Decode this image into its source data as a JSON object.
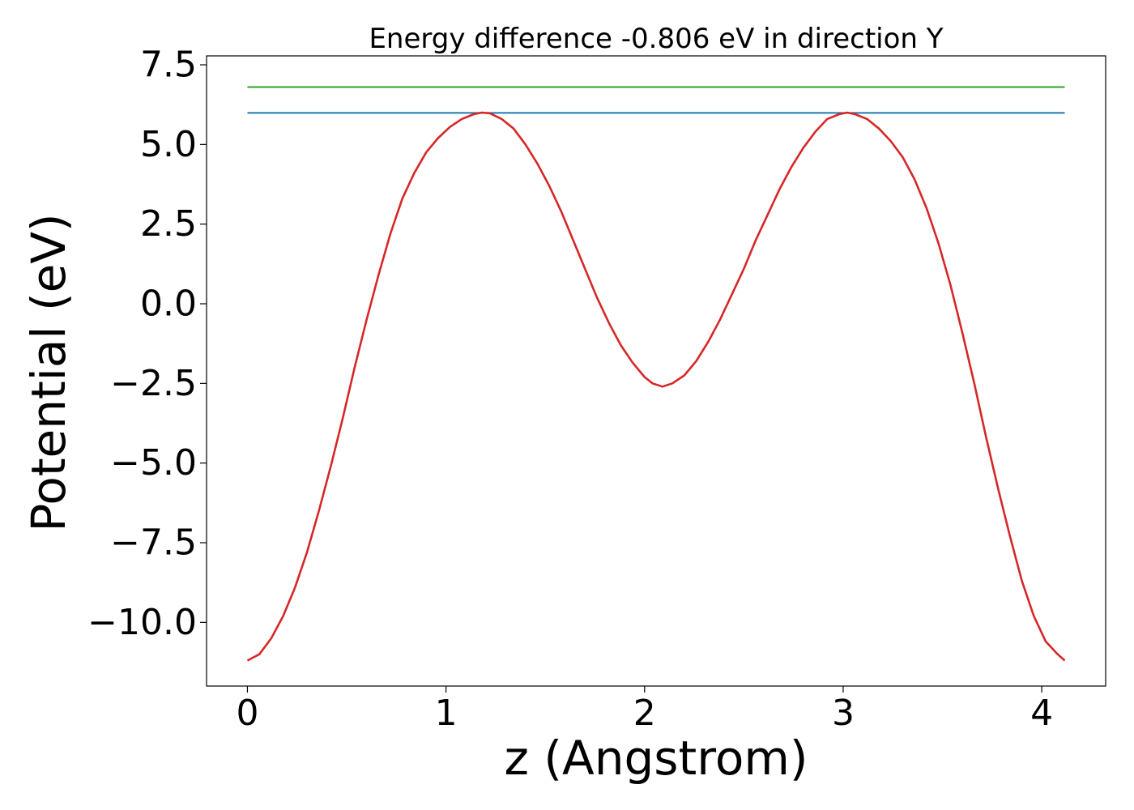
{
  "chart_data": {
    "type": "line",
    "title": "Energy difference -0.806 eV in direction Y",
    "xlabel": "z (Angstrom)",
    "ylabel": "Potential (eV)",
    "xlim": [
      -0.2058,
      4.3218
    ],
    "ylim": [
      -12.0,
      7.78
    ],
    "xticks": [
      0,
      1,
      2,
      3,
      4
    ],
    "xtick_labels": [
      "0",
      "1",
      "2",
      "3",
      "4"
    ],
    "yticks": [
      -10.0,
      -7.5,
      -5.0,
      -2.5,
      0.0,
      2.5,
      5.0,
      7.5
    ],
    "ytick_labels": [
      "−10.0",
      "−7.5",
      "−5.0",
      "−2.5",
      "0.0",
      "2.5",
      "5.0",
      "7.5"
    ],
    "grid": false,
    "series": [
      {
        "color": "#2ca02c",
        "style": "hline",
        "y": 6.8,
        "x": [
          0,
          4.116
        ]
      },
      {
        "color": "#1f77b4",
        "style": "hline",
        "y": 5.99,
        "x": [
          0,
          4.116
        ]
      },
      {
        "color": "#d62728",
        "style": "line",
        "x": [
          0,
          0.06,
          0.12,
          0.18,
          0.24,
          0.3,
          0.36,
          0.42,
          0.48,
          0.54,
          0.6,
          0.66,
          0.72,
          0.78,
          0.84,
          0.9,
          0.96,
          1.02,
          1.08,
          1.14,
          1.18,
          1.22,
          1.28,
          1.34,
          1.4,
          1.46,
          1.52,
          1.58,
          1.64,
          1.7,
          1.76,
          1.82,
          1.88,
          1.94,
          2.0,
          2.04,
          2.09,
          2.14,
          2.2,
          2.26,
          2.32,
          2.38,
          2.44,
          2.5,
          2.56,
          2.62,
          2.68,
          2.74,
          2.8,
          2.86,
          2.92,
          2.98,
          3.02,
          3.06,
          3.12,
          3.18,
          3.24,
          3.3,
          3.36,
          3.42,
          3.48,
          3.54,
          3.6,
          3.66,
          3.72,
          3.78,
          3.84,
          3.9,
          3.96,
          4.02,
          4.08,
          4.116
        ],
        "y": [
          -11.2,
          -11.0,
          -10.5,
          -9.8,
          -8.9,
          -7.8,
          -6.5,
          -5.1,
          -3.6,
          -2.0,
          -0.5,
          0.9,
          2.2,
          3.3,
          4.1,
          4.75,
          5.2,
          5.55,
          5.8,
          5.95,
          6.0,
          5.98,
          5.8,
          5.5,
          5.0,
          4.4,
          3.7,
          2.9,
          2.0,
          1.1,
          0.2,
          -0.6,
          -1.3,
          -1.85,
          -2.3,
          -2.5,
          -2.6,
          -2.5,
          -2.25,
          -1.8,
          -1.2,
          -0.5,
          0.3,
          1.1,
          2.0,
          2.8,
          3.6,
          4.3,
          4.9,
          5.4,
          5.8,
          5.95,
          6.0,
          5.95,
          5.8,
          5.5,
          5.1,
          4.6,
          3.9,
          3.0,
          1.9,
          0.6,
          -0.9,
          -2.5,
          -4.2,
          -5.8,
          -7.3,
          -8.7,
          -9.8,
          -10.6,
          -11.0,
          -11.2
        ]
      }
    ]
  }
}
